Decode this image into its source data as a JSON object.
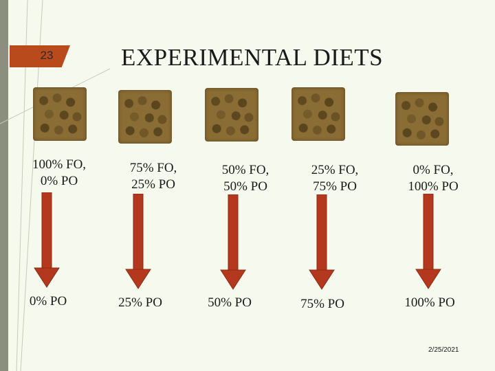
{
  "slide": {
    "number": "23",
    "title": "EXPERIMENTAL DIETS",
    "date": "2/25/2021"
  },
  "diets": [
    {
      "input": "100% FO,\n0% PO",
      "output": "0% PO"
    },
    {
      "input": "75% FO,\n25% PO",
      "output": "25% PO"
    },
    {
      "input": "50% FO,\n50% PO",
      "output": "50% PO"
    },
    {
      "input": "25% FO,\n75% PO",
      "output": "75% PO"
    },
    {
      "input": "0% FO,\n100% PO",
      "output": "100% PO"
    }
  ],
  "colors": {
    "accent": "#b94a1b",
    "arrow": "#b3381d",
    "background": "#f6f9ee"
  },
  "icons": [
    "fish-feed-pellets-image",
    "down-arrow"
  ]
}
